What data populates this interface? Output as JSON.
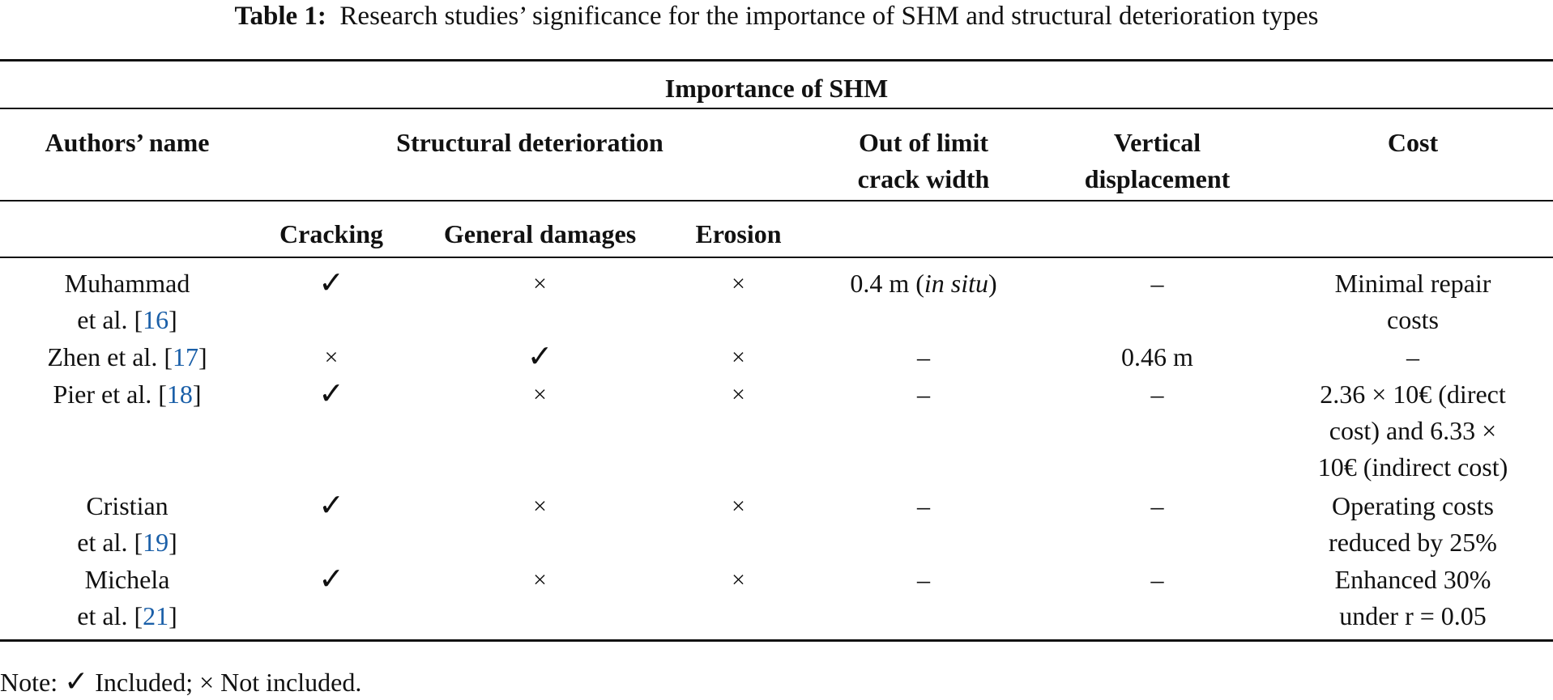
{
  "caption": {
    "label": "Table 1:",
    "text": "Research studies’ significance for the importance of SHM and structural deterioration types"
  },
  "header": {
    "group": "Importance of SHM",
    "authors": "Authors’ name",
    "structural": "Structural deterioration",
    "crack_line1": "Out of limit",
    "crack_line2": "crack width",
    "vert_line1": "Vertical",
    "vert_line2": "displacement",
    "cost": "Cost",
    "cracking": "Cracking",
    "general": "General damages",
    "erosion": "Erosion"
  },
  "rows": [
    {
      "author_line1": "Muhammad",
      "author_line2_pre": "et al. [",
      "ref": "16",
      "author_line2_post": "]",
      "cracking": "✓",
      "general": "×",
      "erosion": "×",
      "crack_pre": "0.4 m (",
      "crack_italic": "in situ",
      "crack_post": ")",
      "vertical": "–",
      "cost_line1": "Minimal repair",
      "cost_line2": "costs"
    },
    {
      "author_line1_pre": "Zhen et al. [",
      "ref": "17",
      "author_line1_post": "]",
      "cracking": "×",
      "general": "✓",
      "erosion": "×",
      "crack": "–",
      "vertical": "0.46 m",
      "cost_line1": "–"
    },
    {
      "author_line1_pre": "Pier et al. [",
      "ref": "18",
      "author_line1_post": "]",
      "cracking": "✓",
      "general": "×",
      "erosion": "×",
      "crack": "–",
      "vertical": "–",
      "cost_line1": "2.36 × 10€ (direct",
      "cost_line2": "cost) and 6.33 ×",
      "cost_line3": "10€ (indirect cost)"
    },
    {
      "author_line1": "Cristian",
      "author_line2_pre": "et al. [",
      "ref": "19",
      "author_line2_post": "]",
      "cracking": "✓",
      "general": "×",
      "erosion": "×",
      "crack": "–",
      "vertical": "–",
      "cost_line1": "Operating costs",
      "cost_line2": "reduced by 25%"
    },
    {
      "author_line1": "Michela",
      "author_line2_pre": "et al. [",
      "ref": "21",
      "author_line2_post": "]",
      "cracking": "✓",
      "general": "×",
      "erosion": "×",
      "crack": "–",
      "vertical": "–",
      "cost_line1": "Enhanced 30%",
      "cost_line2": "under r = 0.05"
    }
  ],
  "note": {
    "prefix": "Note: ",
    "check": "✓",
    "included": " Included; ",
    "cross": "×",
    "not_included": " Not included."
  }
}
